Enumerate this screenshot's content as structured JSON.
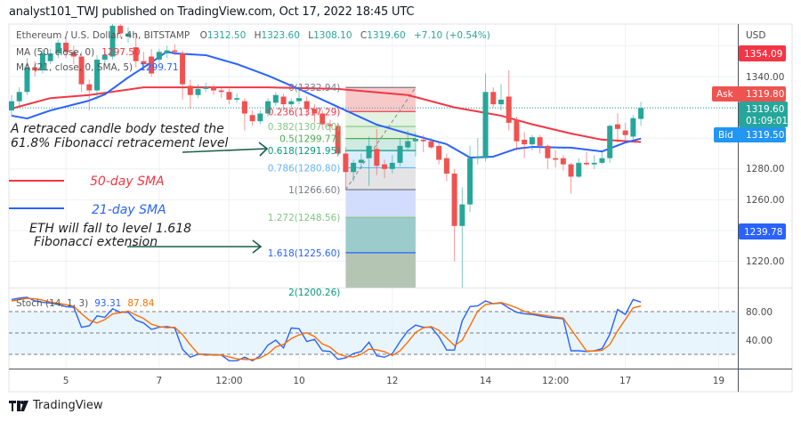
{
  "header": {
    "published": "analyst101_TWJ published on TradingView.com, Oct 17, 2022 18:45 UTC"
  },
  "legend": {
    "symbol": "Ethereum / U.S. Dollar, 4h, BITSTAMP",
    "o_label": "O",
    "o": "1312.50",
    "h_label": "H",
    "h": "1323.60",
    "l_label": "L",
    "l": "1308.10",
    "c_label": "C",
    "c": "1319.60",
    "change": "+7.10 (+0.54%)",
    "ma50_label": "MA (50, close, 0)",
    "ma50_value": "1297.50",
    "ma21_label": "MA (21, close, 0, SMA, 5)",
    "ma21_value": "1299.71"
  },
  "colors": {
    "up": "#26a69a",
    "down": "#ef5350",
    "ma50": "#f23645",
    "ma21": "#2962ff",
    "stoch_k": "#2962ff",
    "stoch_d": "#ff6d00",
    "ask": "#ef5350",
    "bid": "#2196f3",
    "last": "#26a69a",
    "high_tag": "#f23645",
    "low_tag": "#2962ff"
  },
  "price_axis": {
    "currency": "USD",
    "ticks": [
      "1340.00",
      "1280.00",
      "1260.00",
      "1220.00"
    ],
    "tag_high": "1354.09",
    "ask_label": "Ask",
    "ask": "1319.80",
    "last": "1319.60",
    "countdown": "01:09:01",
    "bid_label": "Bid",
    "bid": "1319.50",
    "tag_low": "1239.78"
  },
  "time_axis": {
    "ticks": [
      {
        "label": "5",
        "t": "2022-10-05T00:00"
      },
      {
        "label": "7",
        "t": "2022-10-07T00:00"
      },
      {
        "label": "12:00",
        "t": "2022-10-08T12:00"
      },
      {
        "label": "10",
        "t": "2022-10-10T00:00"
      },
      {
        "label": "12",
        "t": "2022-10-12T00:00"
      },
      {
        "label": "14",
        "t": "2022-10-14T00:00"
      },
      {
        "label": "12:00",
        "t": "2022-10-15T12:00"
      },
      {
        "label": "17",
        "t": "2022-10-17T00:00"
      },
      {
        "label": "19",
        "t": "2022-10-19T00:00"
      }
    ]
  },
  "annotations": {
    "note1_line1": "A retraced candle body tested the",
    "note1_line2": "61.8% Fibonacci retracement level",
    "sma50_label": "50-day SMA",
    "sma21_label": "21-day SMA",
    "note2_line1": "ETH will fall to level  1.618",
    "note2_line2": "Fibonacci extension"
  },
  "stoch": {
    "label": "Stoch (14, 1, 3)",
    "k_value": "93.31",
    "d_value": "87.84",
    "ticks": [
      "80.00",
      "40.00"
    ],
    "bands": [
      80,
      50,
      20
    ]
  },
  "footer": {
    "brand": "TradingView"
  },
  "chart_data": {
    "type": "candlestick",
    "symbol": "ETH/USD",
    "interval": "4h",
    "first_candle": "2022-10-03T20:00",
    "ylim": [
      1203,
      1374
    ],
    "ohlc": [
      [
        1318,
        1328,
        1314,
        1324
      ],
      [
        1324,
        1333,
        1321,
        1330
      ],
      [
        1330,
        1352,
        1328,
        1346
      ],
      [
        1346,
        1350,
        1340,
        1344
      ],
      [
        1344,
        1358,
        1342,
        1355
      ],
      [
        1350,
        1358,
        1348,
        1355
      ],
      [
        1355,
        1364,
        1352,
        1362
      ],
      [
        1362,
        1366,
        1352,
        1356
      ],
      [
        1356,
        1360,
        1348,
        1353
      ],
      [
        1353,
        1356,
        1330,
        1335
      ],
      [
        1335,
        1338,
        1318,
        1331
      ],
      [
        1331,
        1354,
        1325,
        1351
      ],
      [
        1351,
        1356,
        1348,
        1354
      ],
      [
        1353,
        1375,
        1351,
        1373
      ],
      [
        1373,
        1375,
        1365,
        1368
      ],
      [
        1366,
        1372,
        1362,
        1368
      ],
      [
        1359,
        1368,
        1346,
        1350
      ],
      [
        1350,
        1356,
        1344,
        1348
      ],
      [
        1353,
        1358,
        1340,
        1342
      ],
      [
        1351,
        1358,
        1349,
        1356
      ],
      [
        1355,
        1360,
        1352,
        1357
      ],
      [
        1357,
        1361,
        1354,
        1356
      ],
      [
        1355,
        1357,
        1325,
        1335
      ],
      [
        1334,
        1338,
        1319,
        1328
      ],
      [
        1328,
        1335,
        1326,
        1332
      ],
      [
        1332,
        1336,
        1330,
        1333
      ],
      [
        1333,
        1335,
        1328,
        1331
      ],
      [
        1331,
        1333,
        1326,
        1330
      ],
      [
        1330,
        1332,
        1322,
        1325
      ],
      [
        1325,
        1329,
        1323,
        1326
      ],
      [
        1324,
        1326,
        1305,
        1316
      ],
      [
        1315,
        1318,
        1308,
        1311
      ],
      [
        1311,
        1318,
        1309,
        1316
      ],
      [
        1316,
        1326,
        1314,
        1324
      ],
      [
        1323,
        1330,
        1321,
        1328
      ],
      [
        1327,
        1329,
        1318,
        1322
      ],
      [
        1322,
        1326,
        1320,
        1324
      ],
      [
        1324,
        1334,
        1322,
        1326
      ],
      [
        1324,
        1327,
        1314,
        1319
      ],
      [
        1319,
        1322,
        1310,
        1316
      ],
      [
        1316,
        1318,
        1306,
        1309
      ],
      [
        1309,
        1312,
        1304,
        1308
      ],
      [
        1308,
        1310,
        1288,
        1290
      ],
      [
        1290,
        1294,
        1266.6,
        1278
      ],
      [
        1278,
        1286,
        1272,
        1284
      ],
      [
        1284,
        1290,
        1280,
        1286
      ],
      [
        1287,
        1301,
        1269,
        1295
      ],
      [
        1293,
        1306,
        1276,
        1282
      ],
      [
        1283,
        1286,
        1274,
        1280
      ],
      [
        1280,
        1289,
        1277,
        1284
      ],
      [
        1284,
        1300,
        1282,
        1295
      ],
      [
        1294,
        1305,
        1292,
        1298
      ],
      [
        1298,
        1304,
        1288,
        1299.5
      ],
      [
        1299,
        1302,
        1291,
        1298
      ],
      [
        1298,
        1300,
        1293,
        1294
      ],
      [
        1295,
        1297,
        1283,
        1286
      ],
      [
        1287,
        1290,
        1272,
        1277
      ],
      [
        1277,
        1280,
        1220,
        1243
      ],
      [
        1243,
        1268,
        1203,
        1257
      ],
      [
        1257,
        1295,
        1252,
        1287
      ],
      [
        1287,
        1300,
        1283,
        1288
      ],
      [
        1287,
        1342,
        1285,
        1330
      ],
      [
        1330,
        1333,
        1320,
        1322
      ],
      [
        1322,
        1335,
        1318,
        1325
      ],
      [
        1327,
        1344,
        1305,
        1310
      ],
      [
        1312,
        1314,
        1292,
        1298
      ],
      [
        1299,
        1304,
        1287,
        1296
      ],
      [
        1296,
        1302,
        1292,
        1300.6
      ],
      [
        1300.6,
        1302,
        1290,
        1295
      ],
      [
        1295,
        1296,
        1280,
        1287
      ],
      [
        1287,
        1292,
        1281,
        1286
      ],
      [
        1287,
        1289,
        1279,
        1283
      ],
      [
        1283,
        1284,
        1264,
        1275
      ],
      [
        1275,
        1287,
        1274,
        1284
      ],
      [
        1284,
        1291,
        1282,
        1283
      ],
      [
        1283,
        1289,
        1280,
        1284
      ],
      [
        1284,
        1291,
        1283,
        1287
      ],
      [
        1287,
        1309,
        1284,
        1308
      ],
      [
        1309,
        1316,
        1297,
        1306
      ],
      [
        1305,
        1310,
        1299,
        1302
      ],
      [
        1301,
        1315,
        1299,
        1313
      ],
      [
        1312.5,
        1323.6,
        1308.1,
        1319.6
      ]
    ],
    "ma50": [
      [
        "2022-10-03T20:00",
        1319.2
      ],
      [
        "2022-10-04T16:00",
        1326
      ],
      [
        "2022-10-05T12:00",
        1328
      ],
      [
        "2022-10-06T16:00",
        1333
      ],
      [
        "2022-10-09T08:00",
        1333
      ],
      [
        "2022-10-10T20:00",
        1332
      ],
      [
        "2022-10-12T08:00",
        1328
      ],
      [
        "2022-10-13T08:00",
        1320
      ],
      [
        "2022-10-14T08:00",
        1314.6
      ],
      [
        "2022-10-15T00:00",
        1309
      ],
      [
        "2022-10-15T20:00",
        1303
      ],
      [
        "2022-10-16T12:00",
        1299
      ],
      [
        "2022-10-17T08:00",
        1297.5
      ]
    ],
    "ma21": [
      [
        "2022-10-03T20:00",
        1314.6
      ],
      [
        "2022-10-04T04:00",
        1312.8
      ],
      [
        "2022-10-04T16:00",
        1318
      ],
      [
        "2022-10-05T12:00",
        1324.4
      ],
      [
        "2022-10-05T20:00",
        1328.4
      ],
      [
        "2022-10-06T08:00",
        1339.4
      ],
      [
        "2022-10-06T20:00",
        1349.2
      ],
      [
        "2022-10-07T04:00",
        1356.2
      ],
      [
        "2022-10-07T08:00",
        1355
      ],
      [
        "2022-10-08T00:00",
        1353.9
      ],
      [
        "2022-10-08T16:00",
        1348.1
      ],
      [
        "2022-10-09T08:00",
        1340.6
      ],
      [
        "2022-10-10T00:00",
        1331.9
      ],
      [
        "2022-10-10T20:00",
        1320.3
      ],
      [
        "2022-10-11T16:00",
        1308.8
      ],
      [
        "2022-10-12T08:00",
        1303
      ],
      [
        "2022-10-13T04:00",
        1296.1
      ],
      [
        "2022-10-13T16:00",
        1287.4
      ],
      [
        "2022-10-14T04:00",
        1288
      ],
      [
        "2022-10-14T16:00",
        1293.2
      ],
      [
        "2022-10-15T00:00",
        1294.3
      ],
      [
        "2022-10-15T20:00",
        1293.8
      ],
      [
        "2022-10-16T12:00",
        1291.4
      ],
      [
        "2022-10-17T00:00",
        1297.2
      ],
      [
        "2022-10-17T08:00",
        1299.71
      ]
    ],
    "last_price": 1319.6,
    "fibonacci": {
      "start": [
        "2022-10-11T00:00",
        1266.6
      ],
      "end": [
        "2022-10-12T12:00",
        1332.94
      ],
      "levels": [
        {
          "ratio": "0",
          "price": 1332.94,
          "label": "0(1332.94)",
          "color": "#787b86",
          "fill": "#f8c9c9"
        },
        {
          "ratio": "0.236",
          "price": 1317.29,
          "label": "0.236(1317.29)",
          "color": "#f23645",
          "fill": "#e3f2e1"
        },
        {
          "ratio": "0.382",
          "price": 1307.6,
          "label": "0.382(1307.60)",
          "color": "#81c784",
          "fill": "#dcefd9"
        },
        {
          "ratio": "0.5",
          "price": 1299.77,
          "label": "0.5(1299.77)",
          "color": "#4caf50",
          "fill": "#cfe9e3"
        },
        {
          "ratio": "0.618",
          "price": 1291.95,
          "label": "0.618(1291.95)",
          "color": "#089981",
          "fill": "#dbeefc"
        },
        {
          "ratio": "0.786",
          "price": 1280.8,
          "label": "0.786(1280.80)",
          "color": "#64b5f6",
          "fill": "#e4e4e6"
        },
        {
          "ratio": "1",
          "price": 1266.6,
          "label": "1(1266.60)",
          "color": "#787b86",
          "fill": "#d2dcfd"
        },
        {
          "ratio": "1.272",
          "price": 1248.56,
          "label": "1.272(1248.56)",
          "color": "#81c784",
          "fill": "#9ccbcb"
        },
        {
          "ratio": "1.618",
          "price": 1225.6,
          "label": "1.618(1225.60)",
          "color": "#2962ff",
          "fill": "#b4c5b4"
        },
        {
          "ratio": "2",
          "price": 1200.26,
          "label": "2(1200.26)",
          "color": "#089981",
          "fill": null
        }
      ]
    },
    "stochastic": {
      "ylim": [
        0,
        100
      ],
      "k": [
        97,
        99,
        100,
        95,
        93,
        92,
        90,
        87,
        86,
        58,
        60,
        74,
        72,
        84,
        79,
        79,
        68,
        64,
        55,
        58,
        59,
        57,
        27,
        16,
        20,
        20,
        19,
        19,
        11,
        11,
        16,
        11,
        18,
        33,
        40,
        29,
        57,
        56,
        38,
        41,
        25,
        24,
        13,
        15,
        21,
        24,
        37,
        18,
        16,
        21,
        38,
        53,
        61,
        58,
        58,
        45,
        26,
        26,
        67,
        87,
        88,
        95,
        91,
        92,
        85,
        79,
        77,
        76,
        74,
        72,
        71,
        70,
        25,
        25,
        24,
        25,
        28,
        48,
        83,
        76,
        97,
        93.31
      ],
      "d": [
        95,
        97,
        98.7,
        98,
        96,
        93.3,
        91.7,
        89.7,
        87.7,
        77,
        68,
        64,
        68.7,
        76.7,
        78.3,
        80.7,
        75.3,
        70.3,
        62.3,
        59,
        57.3,
        58,
        47.7,
        33.3,
        21,
        18.7,
        19.7,
        19.3,
        16.3,
        13.7,
        12.7,
        12.7,
        15,
        20.7,
        30.3,
        34,
        42,
        47.3,
        50.3,
        45,
        34.7,
        30,
        20.7,
        17.3,
        16.3,
        20,
        27.3,
        26.3,
        23.7,
        18.3,
        25,
        37.3,
        50.7,
        57.3,
        59,
        53.7,
        43,
        32.3,
        39.7,
        60,
        80.7,
        90,
        91.3,
        92.7,
        89.3,
        85.3,
        80.3,
        77.3,
        75.7,
        74,
        72.3,
        71,
        55.3,
        40,
        24.7,
        24.7,
        25.7,
        33.7,
        53,
        69,
        85.3,
        87.84
      ]
    }
  }
}
